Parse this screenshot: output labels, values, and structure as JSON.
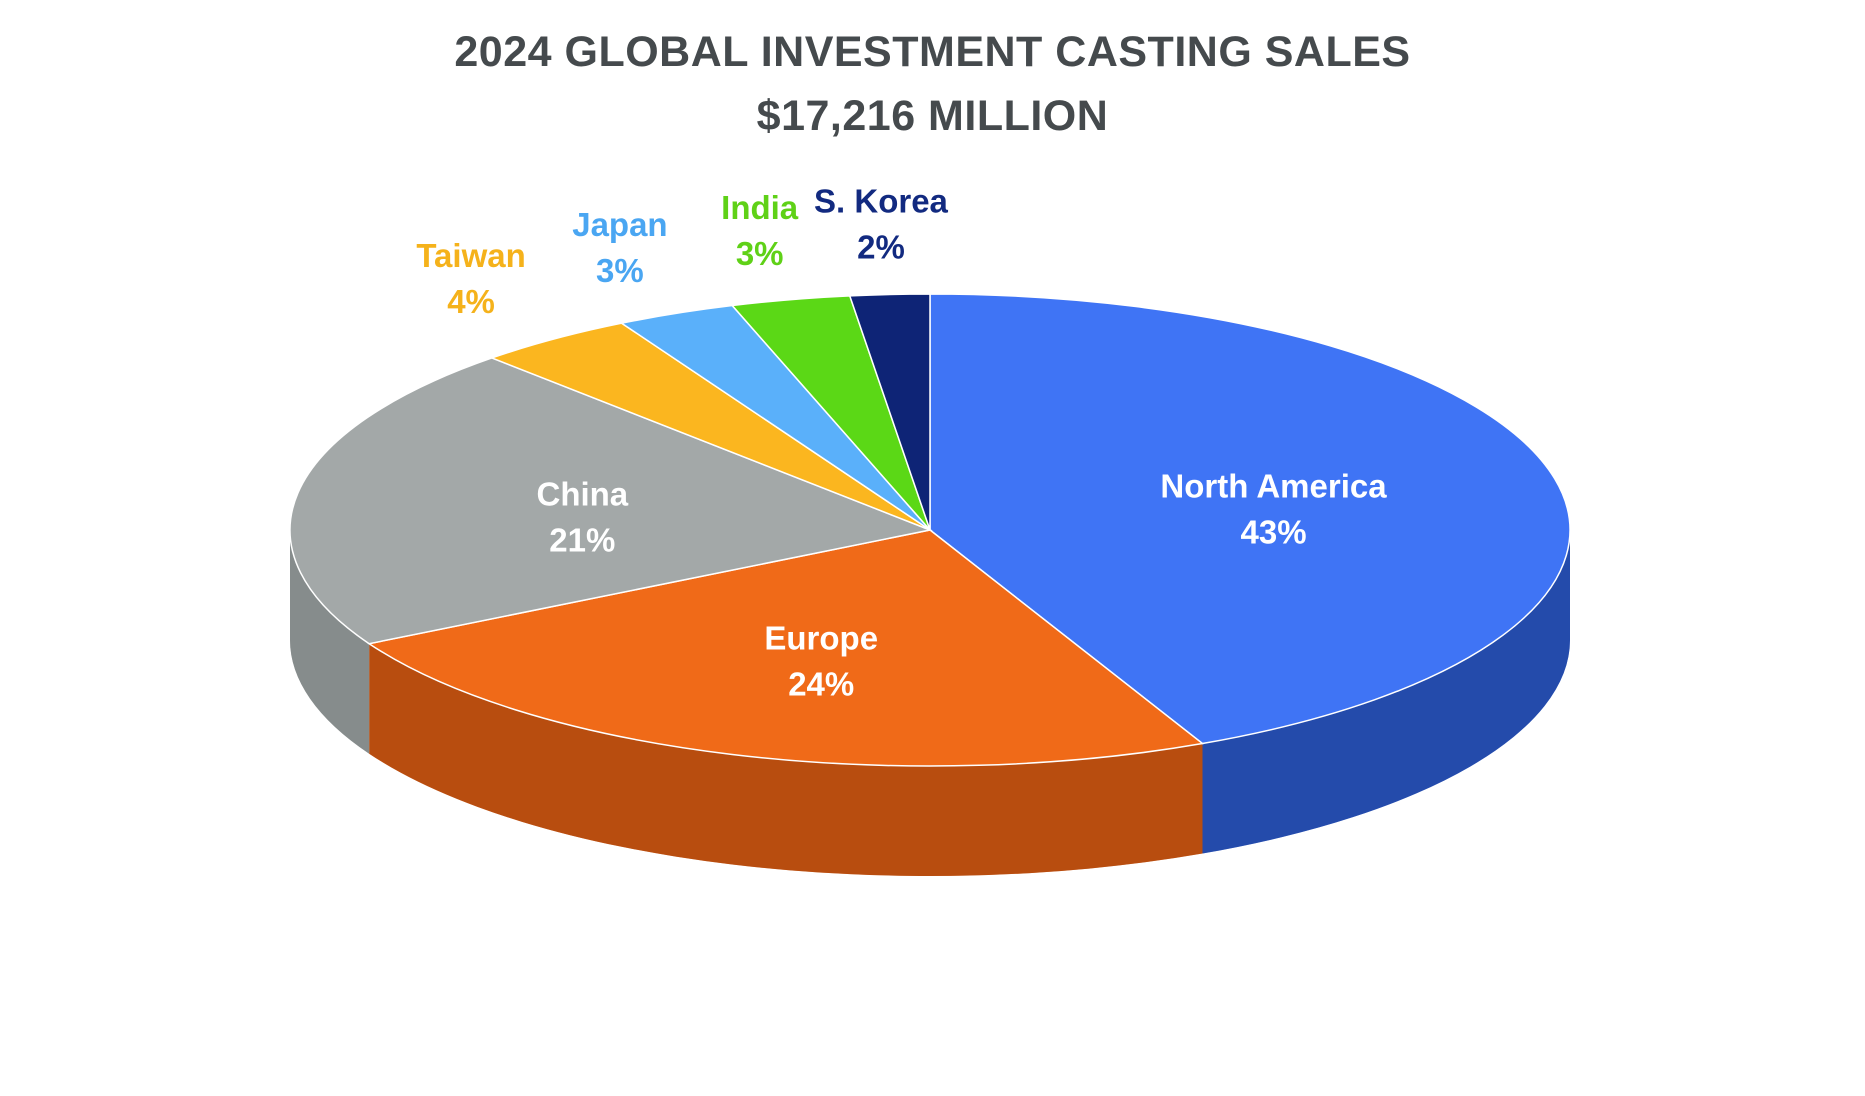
{
  "chart_data": {
    "type": "pie",
    "title": "2024 GLOBAL INVESTMENT CASTING SALES",
    "subtitle": "$17,216 MILLION",
    "slices": [
      {
        "name": "North America",
        "value": 43,
        "label": "43%",
        "color": "#3f74f5",
        "side_color": "#0f2a6e",
        "label_color": "#ffffff"
      },
      {
        "name": "Europe",
        "value": 24,
        "label": "24%",
        "color": "#f06a18",
        "side_color": "#8a3409",
        "label_color": "#ffffff"
      },
      {
        "name": "China",
        "value": 21,
        "label": "21%",
        "color": "#a3a8a8",
        "side_color": "#6f7474",
        "label_color": "#ffffff"
      },
      {
        "name": "Taiwan",
        "value": 4,
        "label": "4%",
        "color": "#fbb61f",
        "side_color": "#a97708",
        "label_color": "#f5b21b"
      },
      {
        "name": "Japan",
        "value": 3,
        "label": "3%",
        "color": "#5ab0fa",
        "side_color": "#2f6fa6",
        "label_color": "#4aa6f2"
      },
      {
        "name": "India",
        "value": 3,
        "label": "3%",
        "color": "#5bd816",
        "side_color": "#2e7a08",
        "label_color": "#5fd117"
      },
      {
        "name": "S. Korea",
        "value": 2,
        "label": "2%",
        "color": "#0e2476",
        "side_color": "#061240",
        "label_color": "#122a80"
      }
    ]
  }
}
